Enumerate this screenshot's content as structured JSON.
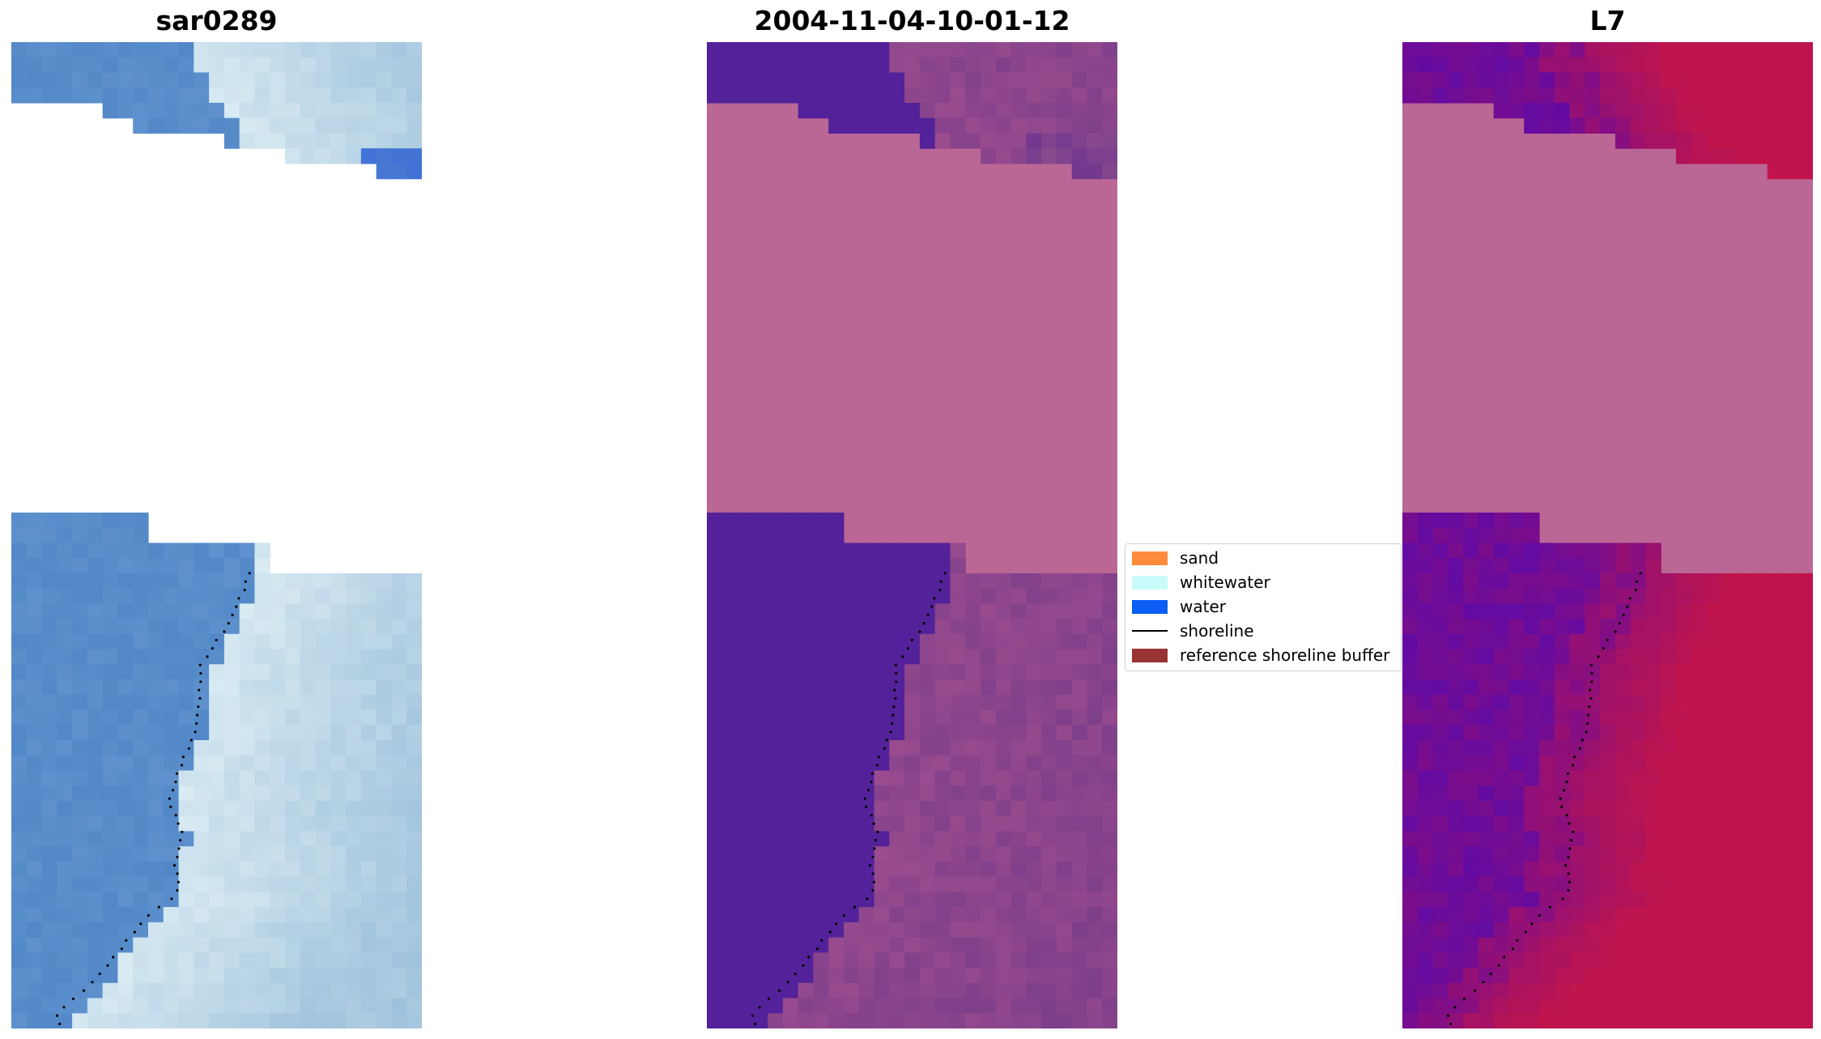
{
  "titles": [
    "sar0289",
    "2004-11-04-10-01-12",
    "L7"
  ],
  "legend": {
    "items": [
      {
        "label": "sand",
        "color": "#ff8c3c",
        "kind": "patch"
      },
      {
        "label": "whitewater",
        "color": "#c9fbfb",
        "kind": "patch"
      },
      {
        "label": "water",
        "color": "#0b5df4",
        "kind": "patch"
      },
      {
        "label": "shoreline",
        "color": "#000000",
        "kind": "line"
      },
      {
        "label": "reference shoreline buffer",
        "color": "#9a3434",
        "kind": "patch"
      }
    ]
  },
  "colors": {
    "nodata": "#bb6796",
    "rgb_water": "#5288c8",
    "rgb_foam": "#d8eaf2",
    "class_water": "#53229a",
    "class_land": "#9a4c8e",
    "ndwi_low": "#5e0aa6",
    "ndwi_high": "#c0154c"
  }
}
